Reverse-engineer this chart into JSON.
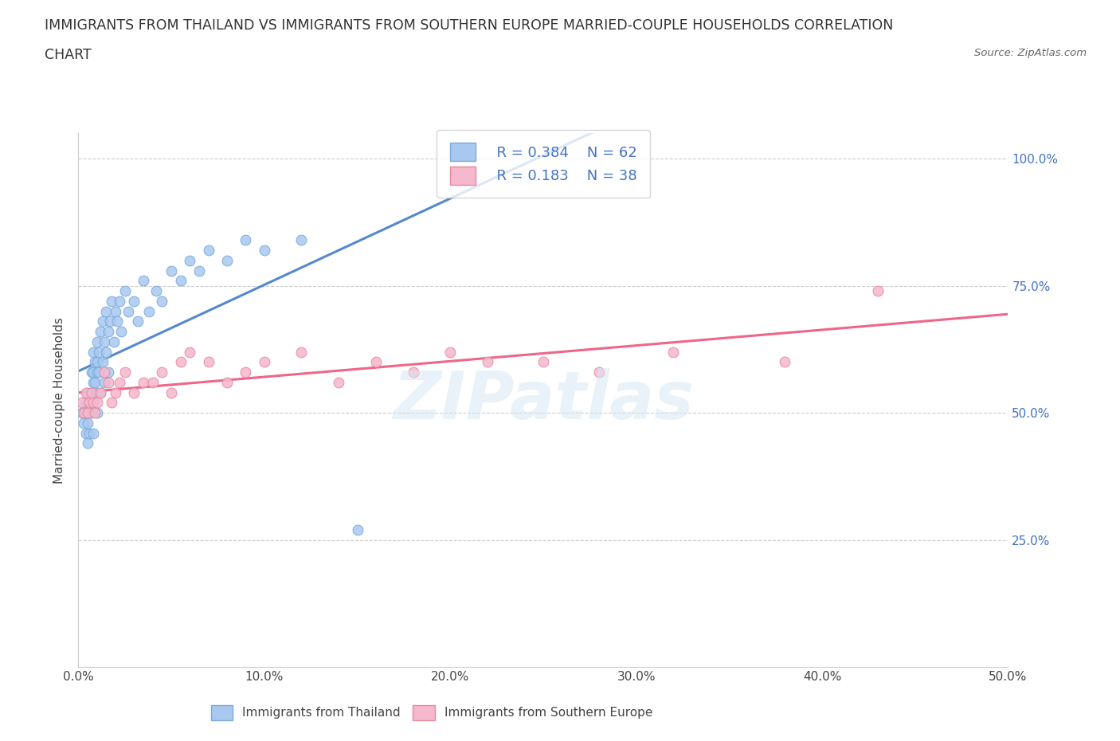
{
  "title_line1": "IMMIGRANTS FROM THAILAND VS IMMIGRANTS FROM SOUTHERN EUROPE MARRIED-COUPLE HOUSEHOLDS CORRELATION",
  "title_line2": "CHART",
  "source": "Source: ZipAtlas.com",
  "ylabel": "Married-couple Households",
  "xlim": [
    0.0,
    0.5
  ],
  "ylim": [
    0.0,
    1.05
  ],
  "xtick_labels": [
    "0.0%",
    "10.0%",
    "20.0%",
    "30.0%",
    "40.0%",
    "50.0%"
  ],
  "xtick_vals": [
    0.0,
    0.1,
    0.2,
    0.3,
    0.4,
    0.5
  ],
  "ytick_labels": [
    "25.0%",
    "50.0%",
    "75.0%",
    "100.0%"
  ],
  "ytick_vals": [
    0.25,
    0.5,
    0.75,
    1.0
  ],
  "R_thailand": 0.384,
  "N_thailand": 62,
  "R_southern": 0.183,
  "N_southern": 38,
  "color_thailand": "#a8c8f0",
  "color_southern": "#f5b8cc",
  "edge_thailand": "#7aaad8",
  "edge_southern": "#e888a0",
  "color_trendline_thailand": "#5588cc",
  "color_trendline_southern": "#ee6688",
  "watermark_color": "#d8e8f4",
  "title_fontsize": 12.5,
  "axis_label_fontsize": 11,
  "tick_fontsize": 11,
  "legend_fontsize": 13,
  "thailand_x": [
    0.002,
    0.003,
    0.004,
    0.004,
    0.005,
    0.005,
    0.005,
    0.005,
    0.006,
    0.006,
    0.007,
    0.007,
    0.007,
    0.008,
    0.008,
    0.008,
    0.008,
    0.008,
    0.009,
    0.009,
    0.01,
    0.01,
    0.01,
    0.01,
    0.01,
    0.011,
    0.011,
    0.012,
    0.012,
    0.013,
    0.013,
    0.014,
    0.014,
    0.015,
    0.015,
    0.016,
    0.016,
    0.017,
    0.018,
    0.019,
    0.02,
    0.021,
    0.022,
    0.023,
    0.025,
    0.027,
    0.03,
    0.032,
    0.035,
    0.038,
    0.042,
    0.045,
    0.05,
    0.055,
    0.06,
    0.065,
    0.07,
    0.08,
    0.09,
    0.1,
    0.12,
    0.15
  ],
  "thailand_y": [
    0.5,
    0.48,
    0.52,
    0.46,
    0.54,
    0.5,
    0.48,
    0.44,
    0.52,
    0.46,
    0.58,
    0.54,
    0.5,
    0.62,
    0.58,
    0.56,
    0.52,
    0.46,
    0.6,
    0.56,
    0.64,
    0.6,
    0.58,
    0.54,
    0.5,
    0.62,
    0.58,
    0.66,
    0.54,
    0.68,
    0.6,
    0.64,
    0.56,
    0.7,
    0.62,
    0.66,
    0.58,
    0.68,
    0.72,
    0.64,
    0.7,
    0.68,
    0.72,
    0.66,
    0.74,
    0.7,
    0.72,
    0.68,
    0.76,
    0.7,
    0.74,
    0.72,
    0.78,
    0.76,
    0.8,
    0.78,
    0.82,
    0.8,
    0.84,
    0.82,
    0.84,
    0.27
  ],
  "southern_x": [
    0.002,
    0.003,
    0.004,
    0.005,
    0.006,
    0.007,
    0.008,
    0.009,
    0.01,
    0.012,
    0.014,
    0.016,
    0.018,
    0.02,
    0.022,
    0.025,
    0.03,
    0.035,
    0.04,
    0.045,
    0.05,
    0.055,
    0.06,
    0.07,
    0.08,
    0.09,
    0.1,
    0.12,
    0.14,
    0.16,
    0.18,
    0.2,
    0.22,
    0.25,
    0.28,
    0.32,
    0.38,
    0.43
  ],
  "southern_y": [
    0.52,
    0.5,
    0.54,
    0.5,
    0.52,
    0.54,
    0.52,
    0.5,
    0.52,
    0.54,
    0.58,
    0.56,
    0.52,
    0.54,
    0.56,
    0.58,
    0.54,
    0.56,
    0.56,
    0.58,
    0.54,
    0.6,
    0.62,
    0.6,
    0.56,
    0.58,
    0.6,
    0.62,
    0.56,
    0.6,
    0.58,
    0.62,
    0.6,
    0.6,
    0.58,
    0.62,
    0.6,
    0.74
  ]
}
